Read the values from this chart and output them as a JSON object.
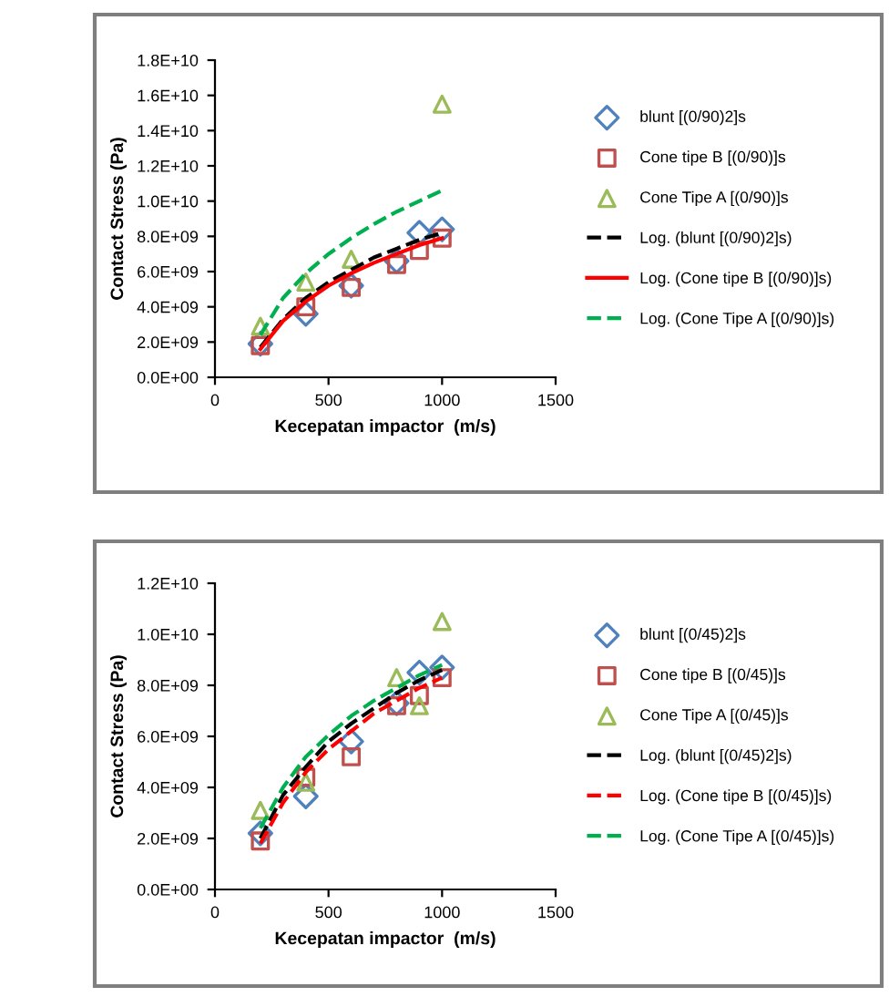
{
  "chart_data": [
    {
      "type": "scatter",
      "xlabel": "Kecepatan impactor  (m/s)",
      "ylabel": "Contact Stress (Pa)",
      "xlim": [
        0,
        1500
      ],
      "xticks": [
        0,
        500,
        1000,
        1500
      ],
      "ylim": [
        0,
        18000000000
      ],
      "yticks": [
        {
          "value": 0,
          "label": "0.0E+00"
        },
        {
          "value": 2000000000,
          "label": "2.0E+09"
        },
        {
          "value": 4000000000,
          "label": "4.0E+09"
        },
        {
          "value": 6000000000,
          "label": "6.0E+09"
        },
        {
          "value": 8000000000,
          "label": "8.0E+09"
        },
        {
          "value": 10000000000,
          "label": "1.0E+10"
        },
        {
          "value": 12000000000,
          "label": "1.2E+10"
        },
        {
          "value": 14000000000,
          "label": "1.4E+10"
        },
        {
          "value": 16000000000,
          "label": "1.6E+10"
        },
        {
          "value": 18000000000,
          "label": "1.8E+10"
        }
      ],
      "legend": "right",
      "grid": false,
      "series": [
        {
          "name": "blunt [(0/90)2]s",
          "marker": "diamond",
          "color": "#4f81bd",
          "x": [
            200,
            400,
            600,
            800,
            900,
            1000
          ],
          "values": [
            1900000000,
            3600000000,
            5200000000,
            6600000000,
            8200000000,
            8400000000
          ]
        },
        {
          "name": "Cone tipe B [(0/90)]s",
          "marker": "square",
          "color": "#c0504d",
          "x": [
            200,
            400,
            600,
            800,
            900,
            1000
          ],
          "values": [
            1800000000,
            4000000000,
            5100000000,
            6400000000,
            7200000000,
            7900000000
          ]
        },
        {
          "name": "Cone Tipe A [(0/90)]s",
          "marker": "triangle",
          "color": "#9bbb59",
          "x": [
            200,
            400,
            600,
            1000
          ],
          "values": [
            2900000000,
            5400000000,
            6700000000,
            15500000000
          ]
        },
        {
          "name": "Log. (blunt [(0/90)2]s)",
          "type": "line",
          "line_style": "dashed",
          "color": "#000000",
          "x": [
            200,
            300,
            400,
            500,
            600,
            700,
            800,
            900,
            1000
          ],
          "values": [
            1700000000,
            3300000000,
            4500000000,
            5400000000,
            6100000000,
            6800000000,
            7300000000,
            7800000000,
            8200000000
          ]
        },
        {
          "name": "Log. (Cone tipe B [(0/90)]s)",
          "type": "line",
          "line_style": "solid",
          "color": "#ff0000",
          "x": [
            200,
            300,
            400,
            500,
            600,
            700,
            800,
            900,
            1000
          ],
          "values": [
            1600000000,
            3200000000,
            4300000000,
            5200000000,
            5900000000,
            6500000000,
            7000000000,
            7500000000,
            7900000000
          ]
        },
        {
          "name": "Log. (Cone Tipe A [(0/90)]s)",
          "type": "line",
          "line_style": "dashed",
          "color": "#00b050",
          "x": [
            200,
            300,
            400,
            500,
            600,
            700,
            800,
            900,
            1000
          ],
          "values": [
            2400000000,
            4500000000,
            5900000000,
            7000000000,
            7900000000,
            8700000000,
            9400000000,
            10000000000,
            10600000000
          ]
        }
      ]
    },
    {
      "type": "scatter",
      "xlabel": "Kecepatan impactor  (m/s)",
      "ylabel": "Contact Stress (Pa)",
      "xlim": [
        0,
        1500
      ],
      "xticks": [
        0,
        500,
        1000,
        1500
      ],
      "ylim": [
        0,
        12000000000
      ],
      "yticks": [
        {
          "value": 0,
          "label": "0.0E+00"
        },
        {
          "value": 2000000000,
          "label": "2.0E+09"
        },
        {
          "value": 4000000000,
          "label": "4.0E+09"
        },
        {
          "value": 6000000000,
          "label": "6.0E+09"
        },
        {
          "value": 8000000000,
          "label": "8.0E+09"
        },
        {
          "value": 10000000000,
          "label": "1.0E+10"
        },
        {
          "value": 12000000000,
          "label": "1.2E+10"
        }
      ],
      "legend": "right",
      "grid": false,
      "series": [
        {
          "name": "blunt [(0/45)2]s",
          "marker": "diamond",
          "color": "#4f81bd",
          "x": [
            200,
            400,
            600,
            800,
            900,
            1000
          ],
          "values": [
            2200000000,
            3650000000,
            5800000000,
            7300000000,
            8500000000,
            8700000000
          ]
        },
        {
          "name": "Cone tipe B [(0/45)]s",
          "marker": "square",
          "color": "#c0504d",
          "x": [
            200,
            400,
            600,
            800,
            900,
            1000
          ],
          "values": [
            1900000000,
            4400000000,
            5200000000,
            7200000000,
            7600000000,
            8300000000
          ]
        },
        {
          "name": "Cone Tipe A [(0/45)]s",
          "marker": "triangle",
          "color": "#9bbb59",
          "x": [
            200,
            400,
            800,
            900,
            1000
          ],
          "values": [
            3100000000,
            4200000000,
            8300000000,
            7200000000,
            10500000000
          ]
        },
        {
          "name": "Log. (blunt [(0/45)2]s)",
          "type": "line",
          "line_style": "dashed",
          "color": "#000000",
          "x": [
            200,
            300,
            400,
            500,
            600,
            700,
            800,
            900,
            1000
          ],
          "values": [
            2000000000,
            3700000000,
            4800000000,
            5800000000,
            6500000000,
            7100000000,
            7700000000,
            8200000000,
            8600000000
          ]
        },
        {
          "name": "Log. (Cone tipe B [(0/45)]s)",
          "type": "line",
          "line_style": "dashed",
          "color": "#ff0000",
          "x": [
            200,
            300,
            400,
            500,
            600,
            700,
            800,
            900,
            1000
          ],
          "values": [
            1800000000,
            3400000000,
            4600000000,
            5500000000,
            6200000000,
            6900000000,
            7400000000,
            7900000000,
            8300000000
          ]
        },
        {
          "name": "Log. (Cone Tipe A [(0/45)]s)",
          "type": "line",
          "line_style": "dashed",
          "color": "#00b050",
          "x": [
            200,
            300,
            400,
            500,
            600,
            700,
            800,
            900,
            1000
          ],
          "values": [
            2400000000,
            4000000000,
            5200000000,
            6050000000,
            6800000000,
            7400000000,
            7900000000,
            8400000000,
            8800000000
          ]
        }
      ]
    }
  ]
}
